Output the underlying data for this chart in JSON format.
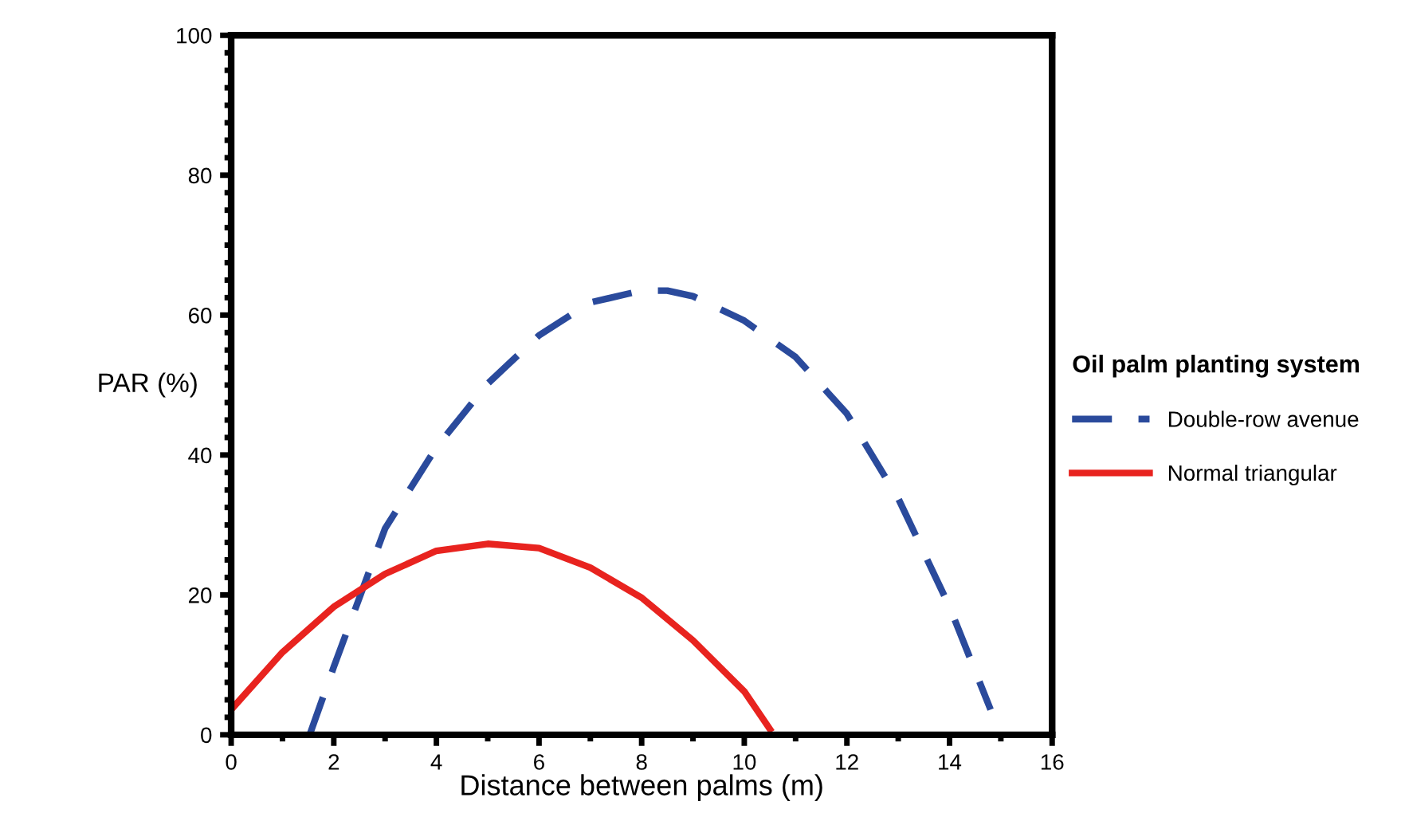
{
  "chart_data": {
    "type": "line",
    "xlabel": "Distance between palms (m)",
    "ylabel": "PAR (%)",
    "legend_title": "Oil palm planting system",
    "legend": "right",
    "grid": false,
    "xlim": [
      0,
      16
    ],
    "xticks": [
      0,
      2,
      4,
      6,
      8,
      10,
      12,
      14,
      16
    ],
    "ylim": [
      0,
      100
    ],
    "yticks": [
      0,
      20,
      40,
      60,
      80,
      100
    ],
    "series": [
      {
        "name": "Double-row avenue",
        "color": "#2a4a9c",
        "line_style": "dashed",
        "x": [
          1.53,
          2,
          3,
          4,
          5,
          6,
          7,
          8,
          8.5,
          9,
          10,
          11,
          12,
          13,
          14,
          14.8
        ],
        "values": [
          0,
          9.7,
          29.5,
          41.1,
          50.2,
          57.1,
          61.8,
          63.5,
          63.5,
          62.7,
          59.2,
          54,
          45.9,
          33.8,
          18.3,
          3.6
        ]
      },
      {
        "name": "Normal triangular",
        "color": "#e8231f",
        "line_style": "solid",
        "x": [
          0,
          1,
          2,
          3,
          4,
          5,
          6,
          7,
          8,
          9,
          10,
          10.5
        ],
        "values": [
          3.6,
          11.8,
          18.3,
          23,
          26.3,
          27.3,
          26.7,
          23.9,
          19.6,
          13.5,
          6.2,
          0.8
        ]
      }
    ]
  }
}
